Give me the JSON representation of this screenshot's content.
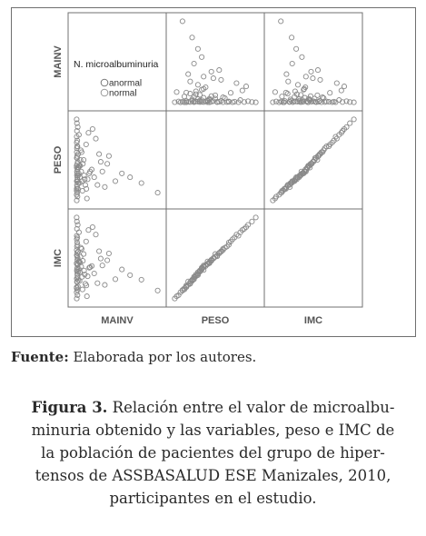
{
  "chart_data": {
    "type": "scatter",
    "variables": [
      "MAINV",
      "PESO",
      "IMC"
    ],
    "legend": {
      "title": "N. microalbuminuria",
      "entries": [
        {
          "label": "anormal",
          "color": "#777777"
        },
        {
          "label": "normal",
          "color": "#999999"
        }
      ],
      "placement": "top-left"
    },
    "grid": false,
    "point_color": "#8a8a8a",
    "observations": [
      {
        "MAINV": 2,
        "PESO": 58,
        "IMC": 23.0
      },
      {
        "MAINV": 3,
        "PESO": 62,
        "IMC": 24.5
      },
      {
        "MAINV": 4,
        "PESO": 65,
        "IMC": 25.8
      },
      {
        "MAINV": 2,
        "PESO": 70,
        "IMC": 27.2
      },
      {
        "MAINV": 5,
        "PESO": 66,
        "IMC": 26.3
      },
      {
        "MAINV": 3,
        "PESO": 74,
        "IMC": 28.6
      },
      {
        "MAINV": 6,
        "PESO": 71,
        "IMC": 27.8
      },
      {
        "MAINV": 4,
        "PESO": 60,
        "IMC": 23.9
      },
      {
        "MAINV": 8,
        "PESO": 68,
        "IMC": 26.9
      },
      {
        "MAINV": 2,
        "PESO": 55,
        "IMC": 22.1
      },
      {
        "MAINV": 7,
        "PESO": 63,
        "IMC": 25.0
      },
      {
        "MAINV": 3,
        "PESO": 77,
        "IMC": 29.5
      },
      {
        "MAINV": 5,
        "PESO": 59,
        "IMC": 24.0
      },
      {
        "MAINV": 9,
        "PESO": 72,
        "IMC": 28.1
      },
      {
        "MAINV": 4,
        "PESO": 67,
        "IMC": 26.0
      },
      {
        "MAINV": 6,
        "PESO": 64,
        "IMC": 25.3
      },
      {
        "MAINV": 10,
        "PESO": 69,
        "IMC": 27.0
      },
      {
        "MAINV": 3,
        "PESO": 82,
        "IMC": 31.4
      },
      {
        "MAINV": 12,
        "PESO": 61,
        "IMC": 24.2
      },
      {
        "MAINV": 5,
        "PESO": 75,
        "IMC": 29.0
      },
      {
        "MAINV": 2,
        "PESO": 57,
        "IMC": 22.8
      },
      {
        "MAINV": 15,
        "PESO": 66,
        "IMC": 26.2
      },
      {
        "MAINV": 4,
        "PESO": 79,
        "IMC": 30.1
      },
      {
        "MAINV": 8,
        "PESO": 62,
        "IMC": 24.7
      },
      {
        "MAINV": 3,
        "PESO": 85,
        "IMC": 32.0
      },
      {
        "MAINV": 18,
        "PESO": 70,
        "IMC": 27.4
      },
      {
        "MAINV": 6,
        "PESO": 56,
        "IMC": 22.5
      },
      {
        "MAINV": 22,
        "PESO": 64,
        "IMC": 25.6
      },
      {
        "MAINV": 4,
        "PESO": 88,
        "IMC": 33.2
      },
      {
        "MAINV": 25,
        "PESO": 73,
        "IMC": 28.3
      },
      {
        "MAINV": 7,
        "PESO": 54,
        "IMC": 21.6
      },
      {
        "MAINV": 30,
        "PESO": 67,
        "IMC": 26.6
      },
      {
        "MAINV": 5,
        "PESO": 80,
        "IMC": 30.8
      },
      {
        "MAINV": 35,
        "PESO": 62,
        "IMC": 24.8
      },
      {
        "MAINV": 9,
        "PESO": 90,
        "IMC": 33.9
      },
      {
        "MAINV": 40,
        "PESO": 71,
        "IMC": 27.6
      },
      {
        "MAINV": 3,
        "PESO": 52,
        "IMC": 21.0
      },
      {
        "MAINV": 48,
        "PESO": 65,
        "IMC": 25.9
      },
      {
        "MAINV": 11,
        "PESO": 76,
        "IMC": 29.2
      },
      {
        "MAINV": 55,
        "PESO": 60,
        "IMC": 23.6
      },
      {
        "MAINV": 6,
        "PESO": 83,
        "IMC": 31.7
      },
      {
        "MAINV": 62,
        "PESO": 58,
        "IMC": 23.3
      },
      {
        "MAINV": 14,
        "PESO": 69,
        "IMC": 27.5
      },
      {
        "MAINV": 70,
        "PESO": 63,
        "IMC": 24.9
      },
      {
        "MAINV": 4,
        "PESO": 92,
        "IMC": 34.5
      },
      {
        "MAINV": 80,
        "PESO": 66,
        "IMC": 26.4
      },
      {
        "MAINV": 20,
        "PESO": 61,
        "IMC": 24.1
      },
      {
        "MAINV": 95,
        "PESO": 68,
        "IMC": 26.7
      },
      {
        "MAINV": 28,
        "PESO": 78,
        "IMC": 29.9
      },
      {
        "MAINV": 110,
        "PESO": 64,
        "IMC": 25.4
      },
      {
        "MAINV": 16,
        "PESO": 86,
        "IMC": 32.6
      },
      {
        "MAINV": 130,
        "PESO": 60,
        "IMC": 23.7
      },
      {
        "MAINV": 45,
        "PESO": 73,
        "IMC": 28.8
      },
      {
        "MAINV": 150,
        "PESO": 72,
        "IMC": 28.0
      },
      {
        "MAINV": 38,
        "PESO": 57,
        "IMC": 22.6
      },
      {
        "MAINV": 175,
        "PESO": 59,
        "IMC": 23.4
      },
      {
        "MAINV": 60,
        "PESO": 81,
        "IMC": 31.0
      },
      {
        "MAINV": 200,
        "PESO": 75,
        "IMC": 28.9
      },
      {
        "MAINV": 85,
        "PESO": 67,
        "IMC": 26.5
      },
      {
        "MAINV": 240,
        "PESO": 62,
        "IMC": 24.4
      },
      {
        "MAINV": 120,
        "PESO": 84,
        "IMC": 32.2
      },
      {
        "MAINV": 280,
        "PESO": 66,
        "IMC": 26.1
      },
      {
        "MAINV": 65,
        "PESO": 53,
        "IMC": 21.4
      },
      {
        "MAINV": 330,
        "PESO": 64,
        "IMC": 25.1
      },
      {
        "MAINV": 100,
        "PESO": 89,
        "IMC": 33.5
      },
      {
        "MAINV": 400,
        "PESO": 61,
        "IMC": 24.3
      },
      {
        "MAINV": 140,
        "PESO": 76,
        "IMC": 29.3
      },
      {
        "MAINV": 500,
        "PESO": 56,
        "IMC": 22.4
      },
      {
        "MAINV": 190,
        "PESO": 71,
        "IMC": 27.7
      },
      {
        "MAINV": 2,
        "PESO": 94,
        "IMC": 35.2
      },
      {
        "MAINV": 3,
        "PESO": 69,
        "IMC": 27.1
      },
      {
        "MAINV": 5,
        "PESO": 74,
        "IMC": 28.4
      },
      {
        "MAINV": 7,
        "PESO": 80,
        "IMC": 30.4
      },
      {
        "MAINV": 10,
        "PESO": 58,
        "IMC": 23.1
      },
      {
        "MAINV": 12,
        "PESO": 65,
        "IMC": 25.7
      },
      {
        "MAINV": 24,
        "PESO": 70,
        "IMC": 27.3
      },
      {
        "MAINV": 33,
        "PESO": 77,
        "IMC": 29.7
      },
      {
        "MAINV": 52,
        "PESO": 63,
        "IMC": 25.2
      },
      {
        "MAINV": 75,
        "PESO": 87,
        "IMC": 33.0
      },
      {
        "MAINV": 160,
        "PESO": 67,
        "IMC": 26.8
      }
    ]
  },
  "footer": {
    "source_label": "Fuente:",
    "source_text": " Elaborada por los autores."
  },
  "caption": {
    "label": "Figura 3.",
    "line1_rest": " Relación entre el valor de microalbu-",
    "line2": "minuria obtenido y las variables, peso e IMC de",
    "line3": "la población de pacientes del grupo de hiper-",
    "line4": "tensos de ASSBASALUD ESE Manizales, 2010,",
    "line5": "participantes en el estudio."
  }
}
